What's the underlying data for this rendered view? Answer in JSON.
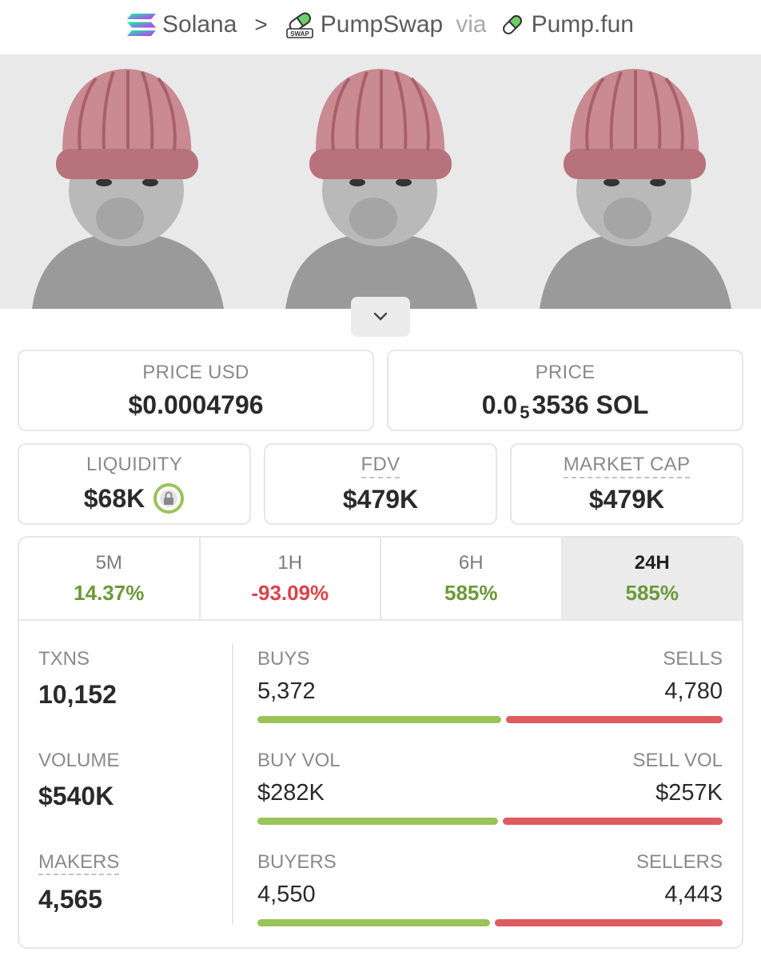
{
  "breadcrumb": {
    "chain": "Solana",
    "separator": ">",
    "dex": "PumpSwap",
    "via": "via",
    "launchpad": "Pump.fun"
  },
  "cards": {
    "price_usd": {
      "label": "PRICE USD",
      "value": "$0.0004796"
    },
    "price": {
      "label": "PRICE",
      "prefix": "0.0",
      "subscript": "5",
      "suffix": "3536 SOL"
    },
    "liquidity": {
      "label": "LIQUIDITY",
      "value": "$68K"
    },
    "fdv": {
      "label": "FDV",
      "value": "$479K"
    },
    "market_cap": {
      "label": "MARKET CAP",
      "value": "$479K"
    }
  },
  "tabs": [
    {
      "label": "5M",
      "change": "14.37%",
      "color": "#6b9a3a"
    },
    {
      "label": "1H",
      "change": "-93.09%",
      "color": "#d9444a"
    },
    {
      "label": "6H",
      "change": "585%",
      "color": "#6b9a3a"
    },
    {
      "label": "24H",
      "change": "585%",
      "color": "#6b9a3a",
      "active": true
    }
  ],
  "stats": {
    "txns": {
      "label": "TXNS",
      "value": "10,152",
      "buy_label": "BUYS",
      "buy_value": "5,372",
      "sell_label": "SELLS",
      "sell_value": "4,780",
      "buy_fraction": 0.529
    },
    "volume": {
      "label": "VOLUME",
      "value": "$540K",
      "buy_label": "BUY VOL",
      "buy_value": "$282K",
      "sell_label": "SELL VOL",
      "sell_value": "$257K",
      "buy_fraction": 0.523
    },
    "makers": {
      "label": "MAKERS",
      "value": "4,565",
      "buy_label": "BUYERS",
      "buy_value": "4,550",
      "sell_label": "SELLERS",
      "sell_value": "4,443",
      "buy_fraction": 0.506
    }
  },
  "colors": {
    "positive": "#6b9a3a",
    "negative": "#d9444a",
    "buy_bar": "#9ac35a",
    "sell_bar": "#de5b5f"
  }
}
